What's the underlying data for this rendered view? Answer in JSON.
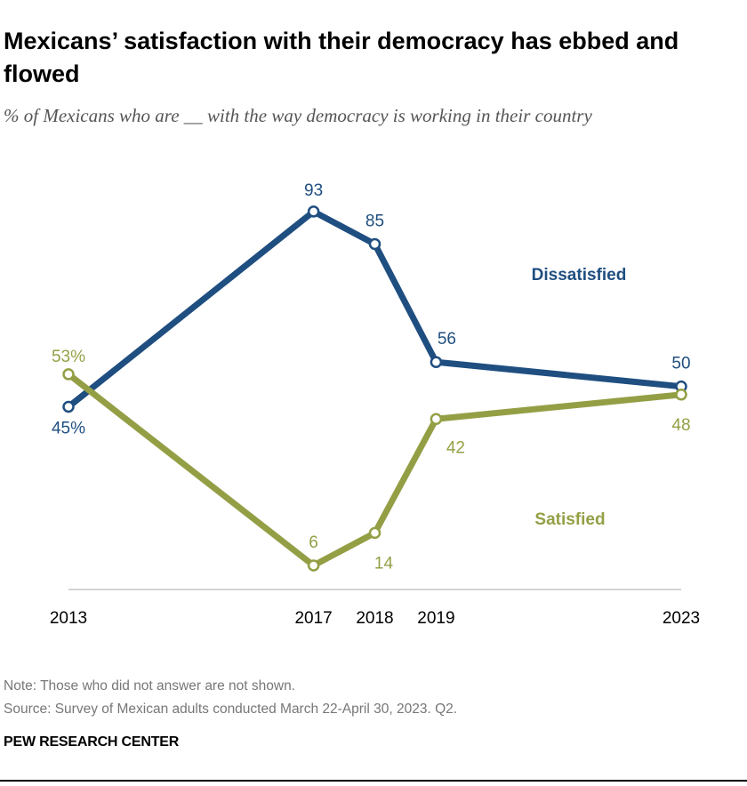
{
  "title": "Mexicans’ satisfaction with their democracy has ebbed and flowed",
  "subtitle": "% of Mexicans who are __ with the way democracy is working in their country",
  "note": "Note: Those who did not answer are not shown.",
  "source": "Source: Survey of Mexican adults conducted March 22-April 30, 2023. Q2.",
  "brand": "PEW RESEARCH CENTER",
  "chart_data": {
    "type": "line",
    "title": "Mexicans’ satisfaction with their democracy has ebbed and flowed",
    "x": [
      2013,
      2017,
      2018,
      2019,
      2023
    ],
    "x_tick_labels": [
      "2013",
      "2017",
      "2018",
      "2019",
      "2023"
    ],
    "ylim": [
      0,
      100
    ],
    "grid": false,
    "series": [
      {
        "name": "Dissatisfied",
        "values": [
          45,
          93,
          85,
          56,
          50
        ],
        "labels": [
          "45%",
          "93",
          "85",
          "56",
          "50"
        ],
        "color": "#1f4e80"
      },
      {
        "name": "Satisfied",
        "values": [
          53,
          6,
          14,
          42,
          48
        ],
        "labels": [
          "53%",
          "6",
          "14",
          "42",
          "48"
        ],
        "color": "#949f45"
      }
    ]
  }
}
